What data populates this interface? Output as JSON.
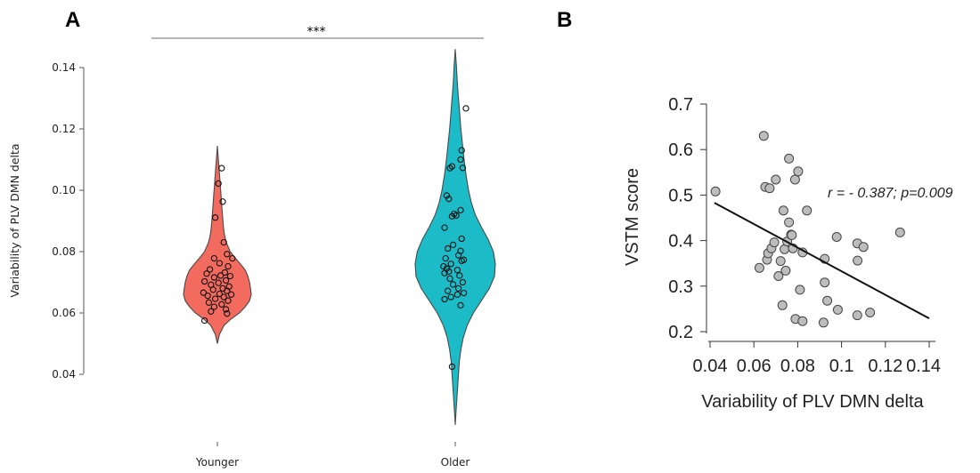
{
  "chart_data": [
    {
      "panel_label": "A",
      "type": "violin",
      "ylabel": "Variability of PLV DMN delta",
      "ylim": [
        0.035,
        0.145
      ],
      "yticks": [
        0.04,
        0.06,
        0.08,
        0.1,
        0.12,
        0.14
      ],
      "ytick_labels": [
        "0.04",
        "0.06",
        "0.08",
        "0.10",
        "0.12",
        "0.14"
      ],
      "categories": [
        "Younger",
        "Older"
      ],
      "colors": [
        "#f26b5e",
        "#1bbbc8"
      ],
      "significance": "***",
      "groups": [
        {
          "name": "Younger",
          "density_y": [
            0.05,
            0.053,
            0.056,
            0.058,
            0.06,
            0.062,
            0.064,
            0.066,
            0.068,
            0.07,
            0.072,
            0.074,
            0.076,
            0.078,
            0.08,
            0.083,
            0.086,
            0.089,
            0.092,
            0.095,
            0.098,
            0.101,
            0.104,
            0.107,
            0.11,
            0.1145
          ],
          "density_w": [
            0.0,
            0.06,
            0.2,
            0.4,
            0.65,
            0.82,
            0.95,
            1.0,
            0.98,
            0.95,
            0.9,
            0.82,
            0.68,
            0.52,
            0.38,
            0.26,
            0.2,
            0.17,
            0.15,
            0.13,
            0.11,
            0.09,
            0.07,
            0.05,
            0.03,
            0.0
          ],
          "points": [
            {
              "y": 0.1072,
              "dx": 0.4
            },
            {
              "y": 0.1022,
              "dx": 0.1
            },
            {
              "y": 0.0963,
              "dx": 0.5
            },
            {
              "y": 0.0911,
              "dx": -0.2
            },
            {
              "y": 0.083,
              "dx": 0.6
            },
            {
              "y": 0.0792,
              "dx": 0.9
            },
            {
              "y": 0.0778,
              "dx": 1.4
            },
            {
              "y": 0.0778,
              "dx": -0.3
            },
            {
              "y": 0.0762,
              "dx": 0.2
            },
            {
              "y": 0.0752,
              "dx": 1.0
            },
            {
              "y": 0.0742,
              "dx": -0.7
            },
            {
              "y": 0.0732,
              "dx": 0.7
            },
            {
              "y": 0.0728,
              "dx": -1.0
            },
            {
              "y": 0.0722,
              "dx": 0.3
            },
            {
              "y": 0.072,
              "dx": 1.2
            },
            {
              "y": 0.0716,
              "dx": -0.3
            },
            {
              "y": 0.0706,
              "dx": 0.8
            },
            {
              "y": 0.0703,
              "dx": -1.2
            },
            {
              "y": 0.0698,
              "dx": 0.1
            },
            {
              "y": 0.0692,
              "dx": -0.6
            },
            {
              "y": 0.0686,
              "dx": 1.1
            },
            {
              "y": 0.068,
              "dx": 0.5
            },
            {
              "y": 0.0676,
              "dx": -0.4
            },
            {
              "y": 0.0672,
              "dx": 0.9
            },
            {
              "y": 0.0666,
              "dx": -1.3
            },
            {
              "y": 0.0662,
              "dx": 0.2
            },
            {
              "y": 0.066,
              "dx": 1.3
            },
            {
              "y": 0.0656,
              "dx": -0.9
            },
            {
              "y": 0.0652,
              "dx": 0.6
            },
            {
              "y": 0.0646,
              "dx": -0.2
            },
            {
              "y": 0.064,
              "dx": 1.0
            },
            {
              "y": 0.0634,
              "dx": -0.8
            },
            {
              "y": 0.0628,
              "dx": 0.4
            },
            {
              "y": 0.062,
              "dx": -0.3
            },
            {
              "y": 0.0612,
              "dx": 0.8
            },
            {
              "y": 0.0605,
              "dx": -0.6
            },
            {
              "y": 0.0598,
              "dx": 0.9
            },
            {
              "y": 0.0575,
              "dx": -1.2
            }
          ]
        },
        {
          "name": "Older",
          "density_y": [
            0.0235,
            0.028,
            0.032,
            0.036,
            0.04,
            0.044,
            0.048,
            0.052,
            0.056,
            0.06,
            0.064,
            0.068,
            0.072,
            0.076,
            0.08,
            0.084,
            0.088,
            0.092,
            0.096,
            0.1,
            0.105,
            0.11,
            0.115,
            0.12,
            0.125,
            0.13,
            0.135,
            0.14,
            0.146
          ],
          "density_w": [
            0.0,
            0.02,
            0.04,
            0.06,
            0.08,
            0.1,
            0.14,
            0.2,
            0.3,
            0.45,
            0.65,
            0.85,
            0.98,
            1.0,
            0.95,
            0.82,
            0.65,
            0.5,
            0.4,
            0.33,
            0.27,
            0.22,
            0.18,
            0.14,
            0.11,
            0.08,
            0.05,
            0.03,
            0.0
          ],
          "points": [
            {
              "y": 0.1267,
              "dx": 1.0
            },
            {
              "y": 0.113,
              "dx": 0.6
            },
            {
              "y": 0.11,
              "dx": 0.5
            },
            {
              "y": 0.1078,
              "dx": -0.3
            },
            {
              "y": 0.1073,
              "dx": 0.7
            },
            {
              "y": 0.1072,
              "dx": -0.5
            },
            {
              "y": 0.0983,
              "dx": -0.8
            },
            {
              "y": 0.0972,
              "dx": -0.6
            },
            {
              "y": 0.0935,
              "dx": 0.5
            },
            {
              "y": 0.0923,
              "dx": -0.1
            },
            {
              "y": 0.0918,
              "dx": 0.1
            },
            {
              "y": 0.0915,
              "dx": -0.3
            },
            {
              "y": 0.0878,
              "dx": -1.0
            },
            {
              "y": 0.0842,
              "dx": 0.6
            },
            {
              "y": 0.0822,
              "dx": -0.2
            },
            {
              "y": 0.081,
              "dx": -0.7
            },
            {
              "y": 0.0802,
              "dx": 0.5
            },
            {
              "y": 0.0788,
              "dx": 0.3
            },
            {
              "y": 0.0778,
              "dx": -0.9
            },
            {
              "y": 0.0773,
              "dx": 0.8
            },
            {
              "y": 0.077,
              "dx": 0.6
            },
            {
              "y": 0.076,
              "dx": -0.4
            },
            {
              "y": 0.0752,
              "dx": -1.1
            },
            {
              "y": 0.0745,
              "dx": -0.8
            },
            {
              "y": 0.074,
              "dx": 0.2
            },
            {
              "y": 0.0735,
              "dx": -0.6
            },
            {
              "y": 0.073,
              "dx": -1.0
            },
            {
              "y": 0.0722,
              "dx": 0.4
            },
            {
              "y": 0.0712,
              "dx": -0.5
            },
            {
              "y": 0.07,
              "dx": 0.7
            },
            {
              "y": 0.0693,
              "dx": -0.2
            },
            {
              "y": 0.068,
              "dx": 0.3
            },
            {
              "y": 0.0672,
              "dx": -0.7
            },
            {
              "y": 0.0665,
              "dx": 0.8
            },
            {
              "y": 0.066,
              "dx": 0.2
            },
            {
              "y": 0.0652,
              "dx": -0.4
            },
            {
              "y": 0.0645,
              "dx": -1.0
            },
            {
              "y": 0.0625,
              "dx": 0.5
            },
            {
              "y": 0.0425,
              "dx": -0.3
            }
          ]
        }
      ]
    },
    {
      "panel_label": "B",
      "type": "scatter",
      "xlabel": "Variability of PLV DMN delta",
      "ylabel": "VSTM score",
      "xlim": [
        0.04,
        0.14
      ],
      "ylim": [
        0.2,
        0.7
      ],
      "xticks": [
        0.04,
        0.06,
        0.08,
        0.1,
        0.12,
        0.14
      ],
      "xtick_labels": [
        "0.04",
        "0.06",
        "0.08",
        "0.1",
        "0.12",
        "0.14"
      ],
      "yticks": [
        0.2,
        0.3,
        0.4,
        0.5,
        0.6,
        0.7
      ],
      "ytick_labels": [
        "0.2",
        "0.3",
        "0.4",
        "0.5",
        "0.6",
        "0.7"
      ],
      "annotation": "r = - 0.387; p=0.009",
      "regression": {
        "x": [
          0.042,
          0.14
        ],
        "y": [
          0.483,
          0.229
        ]
      },
      "point_color": "#bdbdbd",
      "points": [
        {
          "x": 0.0425,
          "y": 0.508
        },
        {
          "x": 0.0625,
          "y": 0.34
        },
        {
          "x": 0.0645,
          "y": 0.63
        },
        {
          "x": 0.0652,
          "y": 0.518
        },
        {
          "x": 0.066,
          "y": 0.358
        },
        {
          "x": 0.0665,
          "y": 0.372
        },
        {
          "x": 0.0672,
          "y": 0.515
        },
        {
          "x": 0.068,
          "y": 0.383
        },
        {
          "x": 0.0693,
          "y": 0.396
        },
        {
          "x": 0.07,
          "y": 0.534
        },
        {
          "x": 0.0712,
          "y": 0.322
        },
        {
          "x": 0.0722,
          "y": 0.355
        },
        {
          "x": 0.073,
          "y": 0.258
        },
        {
          "x": 0.0735,
          "y": 0.466
        },
        {
          "x": 0.074,
          "y": 0.381
        },
        {
          "x": 0.0745,
          "y": 0.334
        },
        {
          "x": 0.0752,
          "y": 0.398
        },
        {
          "x": 0.076,
          "y": 0.58
        },
        {
          "x": 0.076,
          "y": 0.44
        },
        {
          "x": 0.077,
          "y": 0.413
        },
        {
          "x": 0.0773,
          "y": 0.412
        },
        {
          "x": 0.0778,
          "y": 0.383
        },
        {
          "x": 0.0788,
          "y": 0.534
        },
        {
          "x": 0.079,
          "y": 0.228
        },
        {
          "x": 0.0802,
          "y": 0.552
        },
        {
          "x": 0.081,
          "y": 0.292
        },
        {
          "x": 0.0822,
          "y": 0.223
        },
        {
          "x": 0.0822,
          "y": 0.374
        },
        {
          "x": 0.0842,
          "y": 0.466
        },
        {
          "x": 0.0918,
          "y": 0.22
        },
        {
          "x": 0.0923,
          "y": 0.308
        },
        {
          "x": 0.0923,
          "y": 0.36
        },
        {
          "x": 0.0935,
          "y": 0.268
        },
        {
          "x": 0.0983,
          "y": 0.248
        },
        {
          "x": 0.0978,
          "y": 0.408
        },
        {
          "x": 0.1072,
          "y": 0.236
        },
        {
          "x": 0.1072,
          "y": 0.394
        },
        {
          "x": 0.1073,
          "y": 0.356
        },
        {
          "x": 0.11,
          "y": 0.386
        },
        {
          "x": 0.113,
          "y": 0.242
        },
        {
          "x": 0.1267,
          "y": 0.418
        }
      ]
    }
  ]
}
